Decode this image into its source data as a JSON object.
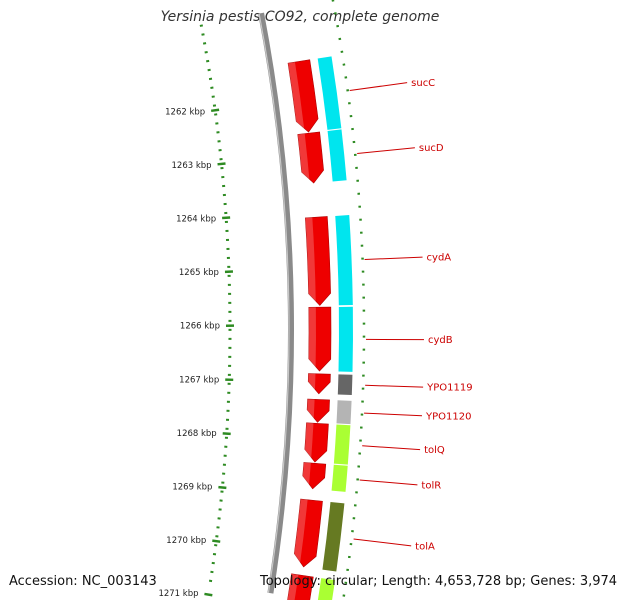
{
  "title": "Yersinia pestis CO92, complete genome",
  "footer": {
    "accession": "Accession: NC_003143",
    "summary": "Topology: circular; Length: 4,653,728 bp; Genes: 3,974"
  },
  "colors": {
    "background": "#ffffff",
    "backbone": "#8a8a8a",
    "tick": "#2e8b22",
    "cds": "#ee0000",
    "gene_label": "#cc0000",
    "cog_cyan": "#00e5ee",
    "cog_lightgreen": "#aaff33",
    "cog_darkgreen": "#667a22",
    "cog_darkgray": "#666666",
    "cog_lightgray": "#b4b4b4"
  },
  "scale": {
    "unit": "kbp",
    "ticks": [
      {
        "label": "1262 kbp",
        "kbp": 1262
      },
      {
        "label": "1263 kbp",
        "kbp": 1263
      },
      {
        "label": "1264 kbp",
        "kbp": 1264
      },
      {
        "label": "1265 kbp",
        "kbp": 1265
      },
      {
        "label": "1266 kbp",
        "kbp": 1266
      },
      {
        "label": "1267 kbp",
        "kbp": 1267
      },
      {
        "label": "1268 kbp",
        "kbp": 1268
      },
      {
        "label": "1269 kbp",
        "kbp": 1269
      },
      {
        "label": "1270 kbp",
        "kbp": 1270
      },
      {
        "label": "1271 kbp",
        "kbp": 1271
      }
    ]
  },
  "genes": [
    {
      "name": "sucC",
      "start_kbp": 1261.35,
      "end_kbp": 1262.6,
      "cog": "cog_cyan"
    },
    {
      "name": "sucD",
      "start_kbp": 1262.62,
      "end_kbp": 1263.5,
      "cog": "cog_cyan"
    },
    {
      "name": "cydA",
      "start_kbp": 1264.1,
      "end_kbp": 1265.65,
      "cog": "cog_cyan"
    },
    {
      "name": "cydB",
      "start_kbp": 1265.68,
      "end_kbp": 1266.8,
      "cog": "cog_cyan"
    },
    {
      "name": "YPO1119",
      "start_kbp": 1266.85,
      "end_kbp": 1267.2,
      "cog": "cog_darkgray"
    },
    {
      "name": "YPO1120",
      "start_kbp": 1267.3,
      "end_kbp": 1267.7,
      "cog": "cog_lightgray"
    },
    {
      "name": "tolQ",
      "start_kbp": 1267.72,
      "end_kbp": 1268.4,
      "cog": "cog_lightgreen"
    },
    {
      "name": "tolR",
      "start_kbp": 1268.42,
      "end_kbp": 1268.87,
      "cog": "cog_lightgreen"
    },
    {
      "name": "tolA",
      "start_kbp": 1269.07,
      "end_kbp": 1270.25,
      "cog": "cog_darkgreen"
    },
    {
      "name": "",
      "start_kbp": 1270.4,
      "end_kbp": 1271.1,
      "cog": "cog_lightgreen"
    }
  ]
}
